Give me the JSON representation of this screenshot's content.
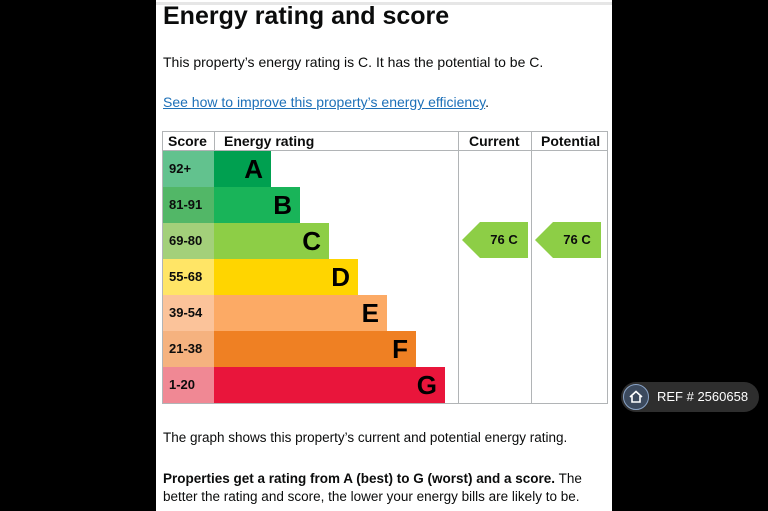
{
  "header": {
    "title": "Energy rating and score"
  },
  "intro": "This property’s energy rating is C. It has the potential to be C.",
  "improve_link": {
    "text": "See how to improve this property’s energy efficiency",
    "suffix": "."
  },
  "table": {
    "headers": {
      "score": "Score",
      "rating": "Energy rating",
      "current": "Current",
      "potential": "Potential"
    },
    "bands": [
      {
        "score": "92+",
        "letter": "A",
        "color": "#62c28e",
        "bar_color": "#00a050"
      },
      {
        "score": "81-91",
        "letter": "B",
        "color": "#52b767",
        "bar_color": "#19b459"
      },
      {
        "score": "69-80",
        "letter": "C",
        "color": "#a3d07a",
        "bar_color": "#8dce46"
      },
      {
        "score": "55-68",
        "letter": "D",
        "color": "#ffe566",
        "bar_color": "#ffd500"
      },
      {
        "score": "39-54",
        "letter": "E",
        "color": "#fbc39a",
        "bar_color": "#fcaa65"
      },
      {
        "score": "21-38",
        "letter": "F",
        "color": "#f5b27f",
        "bar_color": "#ef8023"
      },
      {
        "score": "1-20",
        "letter": "G",
        "color": "#f08894",
        "bar_color": "#e9153b"
      }
    ],
    "current": {
      "value": "76 C",
      "color": "#8dce46"
    },
    "potential": {
      "value": "76 C",
      "color": "#8dce46"
    }
  },
  "caption": "The graph shows this property’s current and potential energy rating.",
  "bottom": {
    "bold": "Properties get a rating from A (best) to G (worst) and a score.",
    "rest": " The better the rating and score, the lower your energy bills are likely to be."
  },
  "ref_badge": {
    "text": "REF # 2560658",
    "icon": "home-icon"
  }
}
